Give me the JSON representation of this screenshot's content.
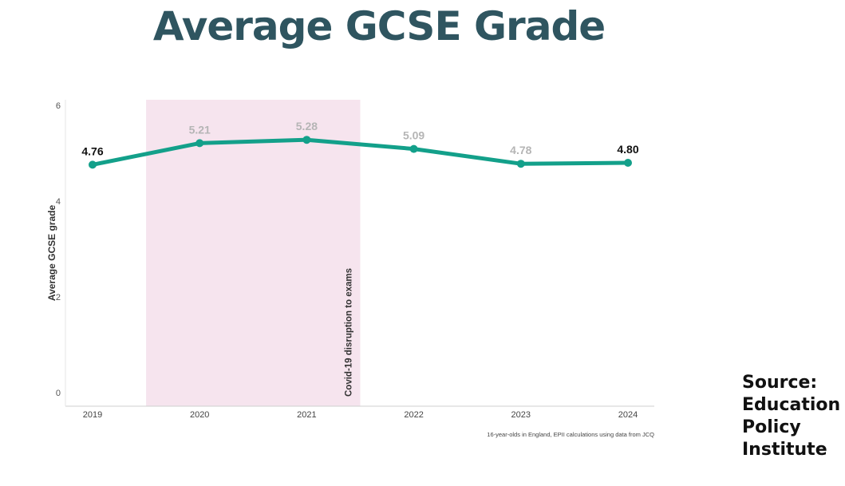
{
  "page": {
    "title": "Average GCSE Grade",
    "source_lines": [
      "Source:",
      "Education",
      "Policy",
      "Institute"
    ]
  },
  "colors": {
    "title": "#2f5560",
    "line": "#13a08a",
    "shade": "#f6e4ee",
    "label_highlight": "#111111",
    "label_muted": "#b5b5b5"
  },
  "chart_data": {
    "type": "line",
    "title": "",
    "xlabel": "",
    "ylabel": "Average GCSE grade",
    "ylim": [
      0,
      6
    ],
    "yticks": [
      0,
      2,
      4,
      6
    ],
    "categories": [
      "2019",
      "2020",
      "2021",
      "2022",
      "2023",
      "2024"
    ],
    "series": [
      {
        "values": [
          4.76,
          5.21,
          5.28,
          5.09,
          4.78,
          4.8
        ],
        "labels": [
          "4.76",
          "5.21",
          "5.28",
          "5.09",
          "4.78",
          "4.80"
        ],
        "label_emphasis": [
          true,
          false,
          false,
          false,
          false,
          true
        ]
      }
    ],
    "shaded_region": {
      "from_category": "2020",
      "to_category": "2021",
      "label": "Covid-19 disruption to exams"
    },
    "caption": "16-year-olds in England, EPII calculations using data from JCQ",
    "grid": false,
    "legend": "none"
  }
}
